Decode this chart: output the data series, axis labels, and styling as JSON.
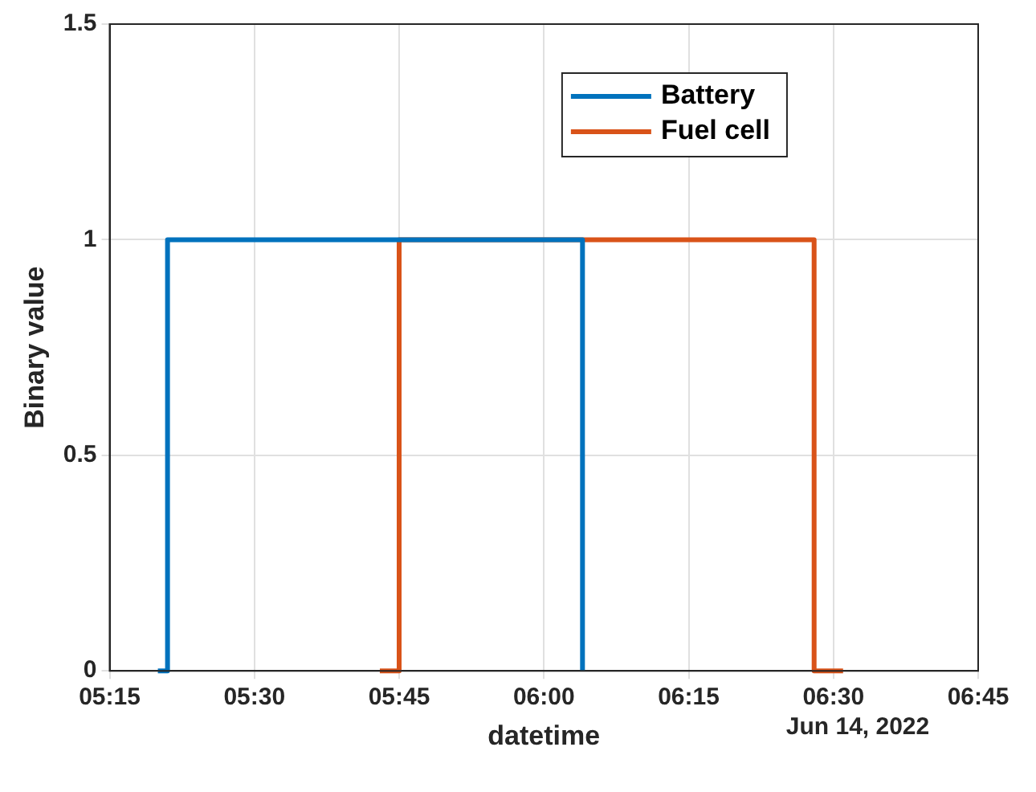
{
  "chart_data": {
    "type": "step",
    "xlabel": "datetime",
    "ylabel": "Binary value",
    "series": [
      {
        "name": "Battery",
        "color": "#0072bd",
        "x": [
          "2022-06-14T05:20",
          "2022-06-14T05:21",
          "2022-06-14T06:04"
        ],
        "values": [
          0,
          1,
          0
        ]
      },
      {
        "name": "Fuel cell",
        "color": "#d95319",
        "x": [
          "2022-06-14T05:43",
          "2022-06-14T05:45",
          "2022-06-14T06:28",
          "2022-06-14T06:31"
        ],
        "values": [
          0,
          1,
          0,
          0
        ]
      }
    ],
    "xlim": [
      "2022-06-14T05:15",
      "2022-06-14T06:45"
    ],
    "xticks": [
      {
        "value": "2022-06-14T05:15",
        "label": "05:15"
      },
      {
        "value": "2022-06-14T05:30",
        "label": "05:30"
      },
      {
        "value": "2022-06-14T05:45",
        "label": "05:45"
      },
      {
        "value": "2022-06-14T06:00",
        "label": "06:00"
      },
      {
        "value": "2022-06-14T06:15",
        "label": "06:15"
      },
      {
        "value": "2022-06-14T06:30",
        "label": "06:30"
      },
      {
        "value": "2022-06-14T06:45",
        "label": "06:45"
      }
    ],
    "ylim": [
      0,
      1.5
    ],
    "yticks": [
      0,
      0.5,
      1,
      1.5
    ],
    "annotations": [
      "Jun 14, 2022"
    ],
    "grid": true,
    "legend": "top right",
    "line_style": "solid",
    "marker": "none"
  }
}
